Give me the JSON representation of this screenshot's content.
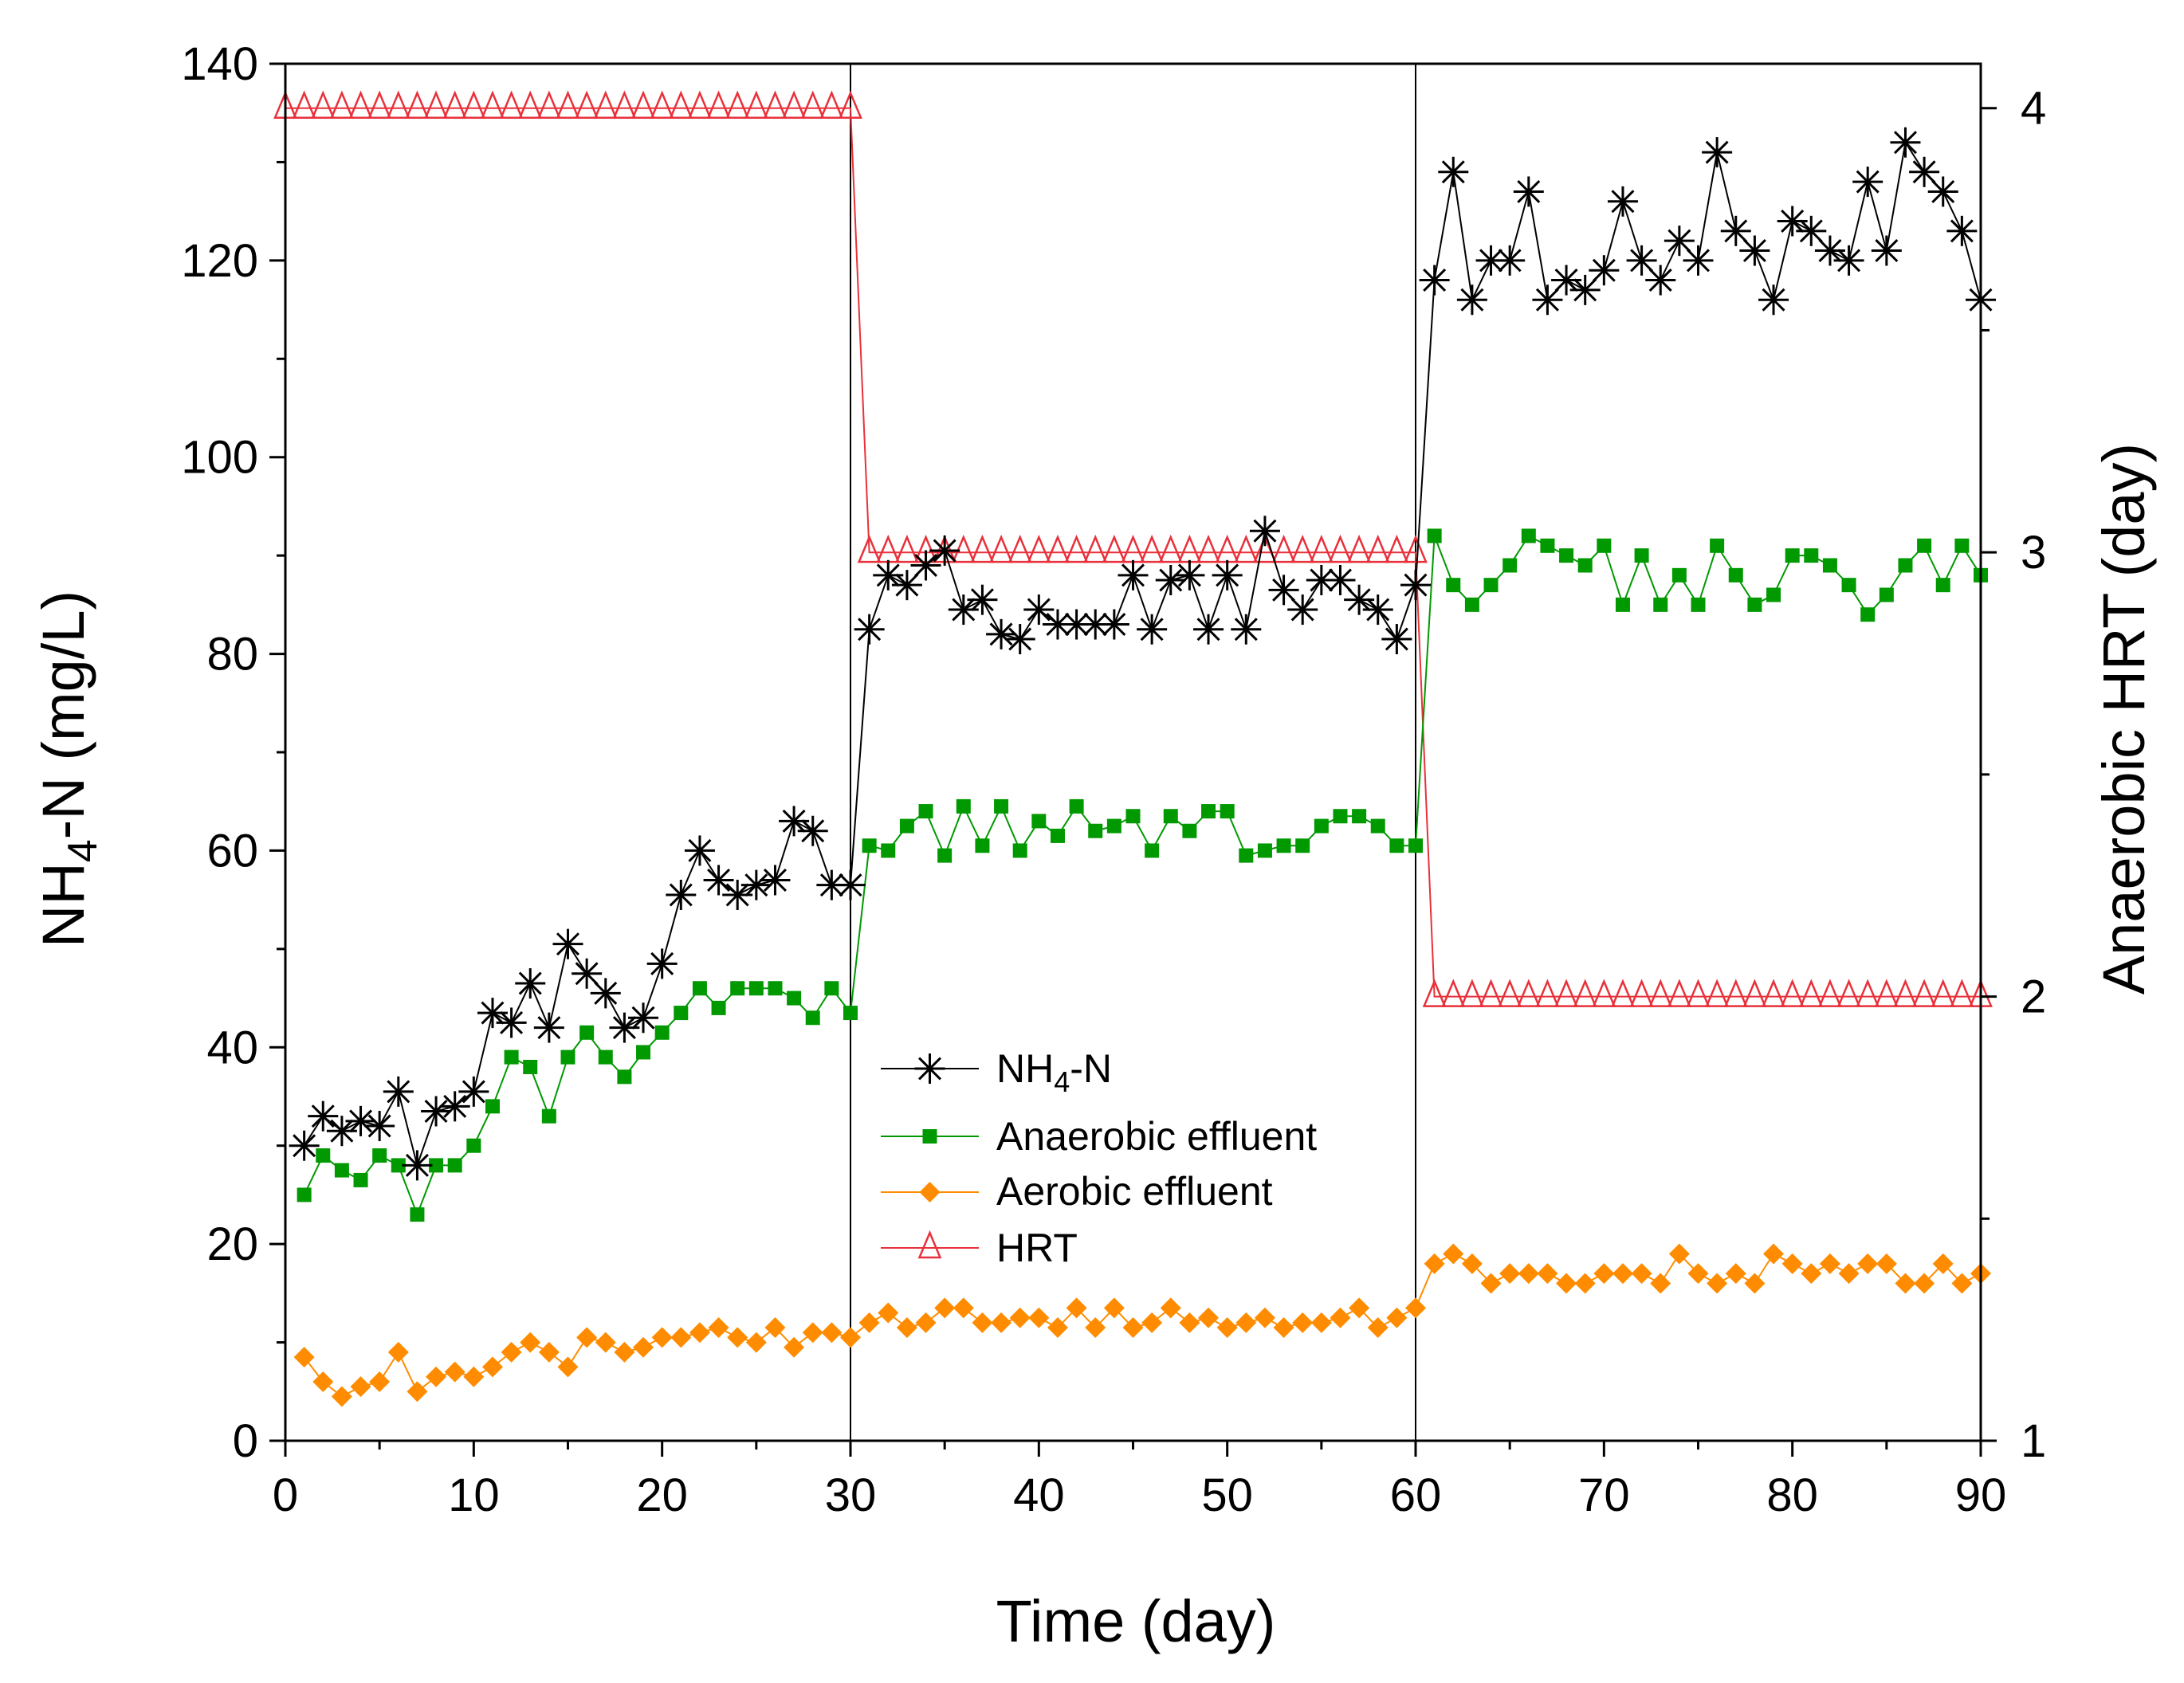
{
  "chart_data": {
    "type": "line",
    "title": "",
    "xlabel": "Time (day)",
    "ylabel_main": "NH",
    "ylabel_sub": "4",
    "ylabel_rest": "-N (mg/L)",
    "y2label": "Anaerobic HRT (day)",
    "xlim": [
      0,
      90
    ],
    "ylim": [
      0,
      140
    ],
    "y2lim": [
      1,
      4.1
    ],
    "xticks": [
      "0",
      "10",
      "20",
      "30",
      "40",
      "50",
      "60",
      "70",
      "80",
      "90"
    ],
    "yticks": [
      "0",
      "20",
      "40",
      "60",
      "80",
      "100",
      "120",
      "140"
    ],
    "y2ticks": [
      "1",
      "2",
      "3",
      "4"
    ],
    "phase_boundaries": [
      30,
      60
    ],
    "grid": false,
    "legend_position": "center",
    "colors": {
      "nh4": "#000000",
      "anaerobic": "#009900",
      "aerobic": "#ff8c00",
      "hrt": "#e8313a"
    },
    "series": [
      {
        "name": "NH4-N",
        "legend_main": "NH",
        "legend_sub": "4",
        "legend_rest": "-N",
        "axis": "left",
        "marker": "asterisk",
        "x": [
          1,
          2,
          3,
          4,
          5,
          6,
          7,
          8,
          9,
          10,
          11,
          12,
          13,
          14,
          15,
          16,
          17,
          18,
          19,
          20,
          21,
          22,
          23,
          24,
          25,
          26,
          27,
          28,
          29,
          30,
          31,
          32,
          33,
          34,
          35,
          36,
          37,
          38,
          39,
          40,
          41,
          42,
          43,
          44,
          45,
          46,
          47,
          48,
          49,
          50,
          51,
          52,
          53,
          54,
          55,
          56,
          57,
          58,
          59,
          60,
          61,
          62,
          63,
          64,
          65,
          66,
          67,
          68,
          69,
          70,
          71,
          72,
          73,
          74,
          75,
          76,
          77,
          78,
          79,
          80,
          81,
          82,
          83,
          84,
          85,
          86,
          87,
          88,
          89,
          90
        ],
        "values": [
          30,
          33,
          31.5,
          32.5,
          32,
          35.5,
          28,
          33.5,
          34,
          35.5,
          43.5,
          42.5,
          46.5,
          42,
          50.5,
          47.5,
          45.5,
          42,
          43,
          48.5,
          55.5,
          60,
          57,
          55.5,
          56.5,
          57,
          63,
          62,
          56.5,
          56.5,
          82.5,
          88,
          87,
          89,
          90.5,
          84.5,
          85.5,
          82,
          81.5,
          84.5,
          83,
          83,
          83,
          83,
          88,
          82.5,
          87.5,
          88,
          82.5,
          88,
          82.5,
          92.5,
          86.5,
          84.5,
          87.5,
          87.5,
          85.5,
          84.5,
          81.5,
          87,
          118,
          129,
          116,
          120,
          120,
          127,
          116,
          118,
          117,
          119,
          126,
          120,
          118,
          122,
          120,
          131,
          123,
          121,
          116,
          124,
          123,
          121,
          120,
          128,
          121,
          132,
          129,
          127,
          123,
          116
        ]
      },
      {
        "name": "Anaerobic effluent",
        "axis": "left",
        "marker": "square",
        "x": [
          1,
          2,
          3,
          4,
          5,
          6,
          7,
          8,
          9,
          10,
          11,
          12,
          13,
          14,
          15,
          16,
          17,
          18,
          19,
          20,
          21,
          22,
          23,
          24,
          25,
          26,
          27,
          28,
          29,
          30,
          31,
          32,
          33,
          34,
          35,
          36,
          37,
          38,
          39,
          40,
          41,
          42,
          43,
          44,
          45,
          46,
          47,
          48,
          49,
          50,
          51,
          52,
          53,
          54,
          55,
          56,
          57,
          58,
          59,
          60,
          61,
          62,
          63,
          64,
          65,
          66,
          67,
          68,
          69,
          70,
          71,
          72,
          73,
          74,
          75,
          76,
          77,
          78,
          79,
          80,
          81,
          82,
          83,
          84,
          85,
          86,
          87,
          88,
          89,
          90
        ],
        "values": [
          25,
          29,
          27.5,
          26.5,
          29,
          28,
          23,
          28,
          28,
          30,
          34,
          39,
          38,
          33,
          39,
          41.5,
          39,
          37,
          39.5,
          41.5,
          43.5,
          46,
          44,
          46,
          46,
          46,
          45,
          43,
          46,
          43.5,
          60.5,
          60,
          62.5,
          64,
          59.5,
          64.5,
          60.5,
          64.5,
          60,
          63,
          61.5,
          64.5,
          62,
          62.5,
          63.5,
          60,
          63.5,
          62,
          64,
          64,
          59.5,
          60,
          60.5,
          60.5,
          62.5,
          63.5,
          63.5,
          62.5,
          60.5,
          60.5,
          92,
          87,
          85,
          87,
          89,
          92,
          91,
          90,
          89,
          91,
          85,
          90,
          85,
          88,
          85,
          91,
          88,
          85,
          86,
          90,
          90,
          89,
          87,
          84,
          86,
          89,
          91,
          87,
          91,
          88
        ]
      },
      {
        "name": "Aerobic effluent",
        "axis": "left",
        "marker": "diamond",
        "x": [
          1,
          2,
          3,
          4,
          5,
          6,
          7,
          8,
          9,
          10,
          11,
          12,
          13,
          14,
          15,
          16,
          17,
          18,
          19,
          20,
          21,
          22,
          23,
          24,
          25,
          26,
          27,
          28,
          29,
          30,
          31,
          32,
          33,
          34,
          35,
          36,
          37,
          38,
          39,
          40,
          41,
          42,
          43,
          44,
          45,
          46,
          47,
          48,
          49,
          50,
          51,
          52,
          53,
          54,
          55,
          56,
          57,
          58,
          59,
          60,
          61,
          62,
          63,
          64,
          65,
          66,
          67,
          68,
          69,
          70,
          71,
          72,
          73,
          74,
          75,
          76,
          77,
          78,
          79,
          80,
          81,
          82,
          83,
          84,
          85,
          86,
          87,
          88,
          89,
          90
        ],
        "values": [
          8.5,
          6,
          4.5,
          5.5,
          6,
          9,
          5,
          6.5,
          7,
          6.5,
          7.5,
          9,
          10,
          9,
          7.5,
          10.5,
          10,
          9,
          9.5,
          10.5,
          10.5,
          11,
          11.5,
          10.5,
          10,
          11.5,
          9.5,
          11,
          11,
          10.5,
          12,
          13,
          11.5,
          12,
          13.5,
          13.5,
          12,
          12,
          12.5,
          12.5,
          11.5,
          13.5,
          11.5,
          13.5,
          11.5,
          12,
          13.5,
          12,
          12.5,
          11.5,
          12,
          12.5,
          11.5,
          12,
          12,
          12.5,
          13.5,
          11.5,
          12.5,
          13.5,
          18,
          19,
          18,
          16,
          17,
          17,
          17,
          16,
          16,
          17,
          17,
          17,
          16,
          19,
          17,
          16,
          17,
          16,
          19,
          18,
          17,
          18,
          17,
          18,
          18,
          16,
          16,
          18,
          16,
          17
        ]
      },
      {
        "name": "HRT",
        "axis": "right",
        "marker": "triangle",
        "x": [
          0,
          1,
          2,
          3,
          4,
          5,
          6,
          7,
          8,
          9,
          10,
          11,
          12,
          13,
          14,
          15,
          16,
          17,
          18,
          19,
          20,
          21,
          22,
          23,
          24,
          25,
          26,
          27,
          28,
          29,
          30,
          31,
          32,
          33,
          34,
          35,
          36,
          37,
          38,
          39,
          40,
          41,
          42,
          43,
          44,
          45,
          46,
          47,
          48,
          49,
          50,
          51,
          52,
          53,
          54,
          55,
          56,
          57,
          58,
          59,
          60,
          61,
          62,
          63,
          64,
          65,
          66,
          67,
          68,
          69,
          70,
          71,
          72,
          73,
          74,
          75,
          76,
          77,
          78,
          79,
          80,
          81,
          82,
          83,
          84,
          85,
          86,
          87,
          88,
          89,
          90
        ],
        "values": [
          4,
          4,
          4,
          4,
          4,
          4,
          4,
          4,
          4,
          4,
          4,
          4,
          4,
          4,
          4,
          4,
          4,
          4,
          4,
          4,
          4,
          4,
          4,
          4,
          4,
          4,
          4,
          4,
          4,
          4,
          4,
          3,
          3,
          3,
          3,
          3,
          3,
          3,
          3,
          3,
          3,
          3,
          3,
          3,
          3,
          3,
          3,
          3,
          3,
          3,
          3,
          3,
          3,
          3,
          3,
          3,
          3,
          3,
          3,
          3,
          3,
          2,
          2,
          2,
          2,
          2,
          2,
          2,
          2,
          2,
          2,
          2,
          2,
          2,
          2,
          2,
          2,
          2,
          2,
          2,
          2,
          2,
          2,
          2,
          2,
          2,
          2,
          2,
          2,
          2,
          2
        ]
      }
    ]
  }
}
